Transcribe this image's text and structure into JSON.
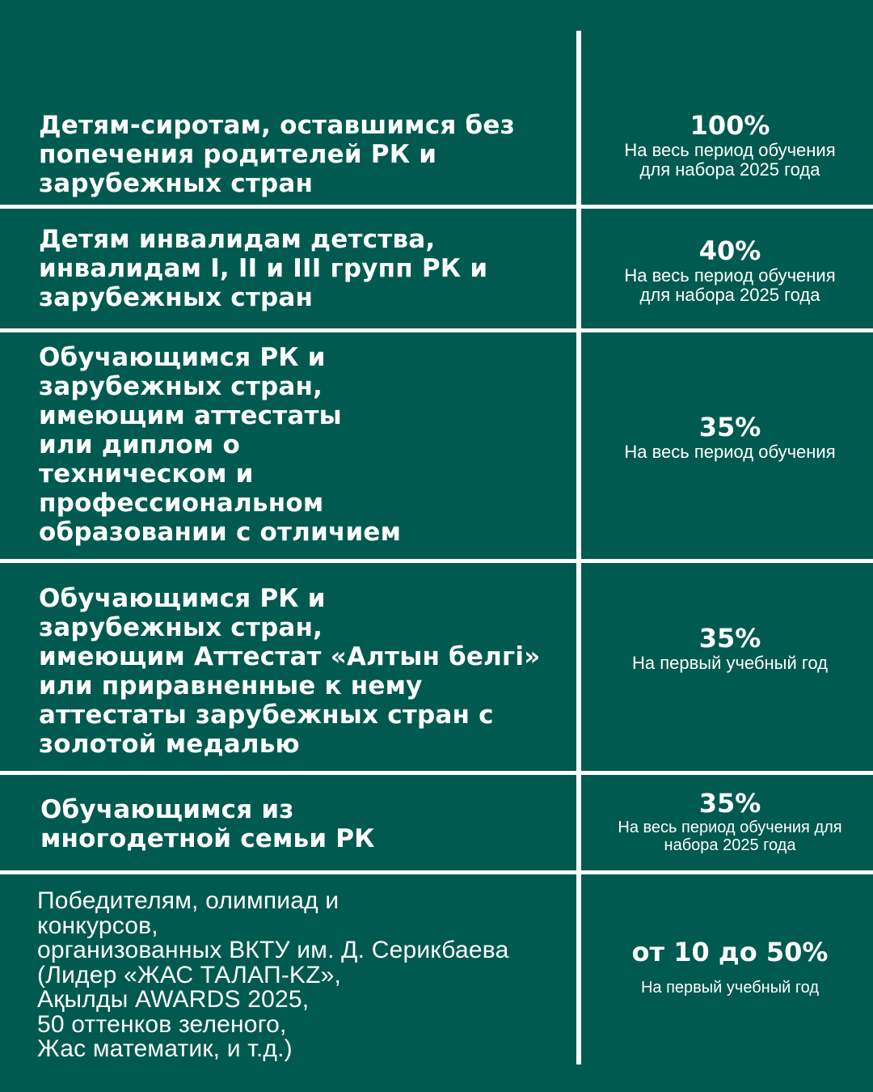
{
  "colors": {
    "background": "#005a4f",
    "lines": "#ffffff",
    "text": "#ffffff"
  },
  "rows": [
    {
      "category": "Детям-сиротам, оставшимся без\nпопечения родителей РК и\nзарубежных стран",
      "discount": "100%",
      "term": "На весь период обучения\nдля набора 2025 года"
    },
    {
      "category": "Детям инвалидам детства,\nинвалидам I, II и III групп РК и\nзарубежных стран",
      "discount": "40%",
      "term": "На весь период обучения\nдля набора 2025 года"
    },
    {
      "category": "Обучающимся РК и\nзарубежных стран,\nимеющим аттестаты\nили диплом о\nтехническом и\nпрофессиональном\nобразовании с отличием",
      "discount": "35%",
      "term": "На весь период обучения"
    },
    {
      "category": "Обучающимся РК и\nзарубежных стран,\nимеющим Аттестат «Алтын белгі»\nили приравненные к нему\nаттестаты зарубежных стран с\nзолотой медалью",
      "discount": "35%",
      "term": "На первый учебный год"
    },
    {
      "category": "Обучающимся  из\nмногодетной семьи РК",
      "discount": "35%",
      "term": "На весь период обучения для\nнабора 2025 года"
    },
    {
      "category": "Победителям, олимпиад и\nконкурсов,\nорганизованных ВКТУ им. Д. Серикбаева\n(Лидер «ЖАС ТАЛАП-KZ»,\nАқылды AWARDS 2025,\n50 оттенков зеленого,\nЖас математик, и т.д.)",
      "discount": "от 10 до 50%",
      "term": "На первый учебный год"
    }
  ]
}
